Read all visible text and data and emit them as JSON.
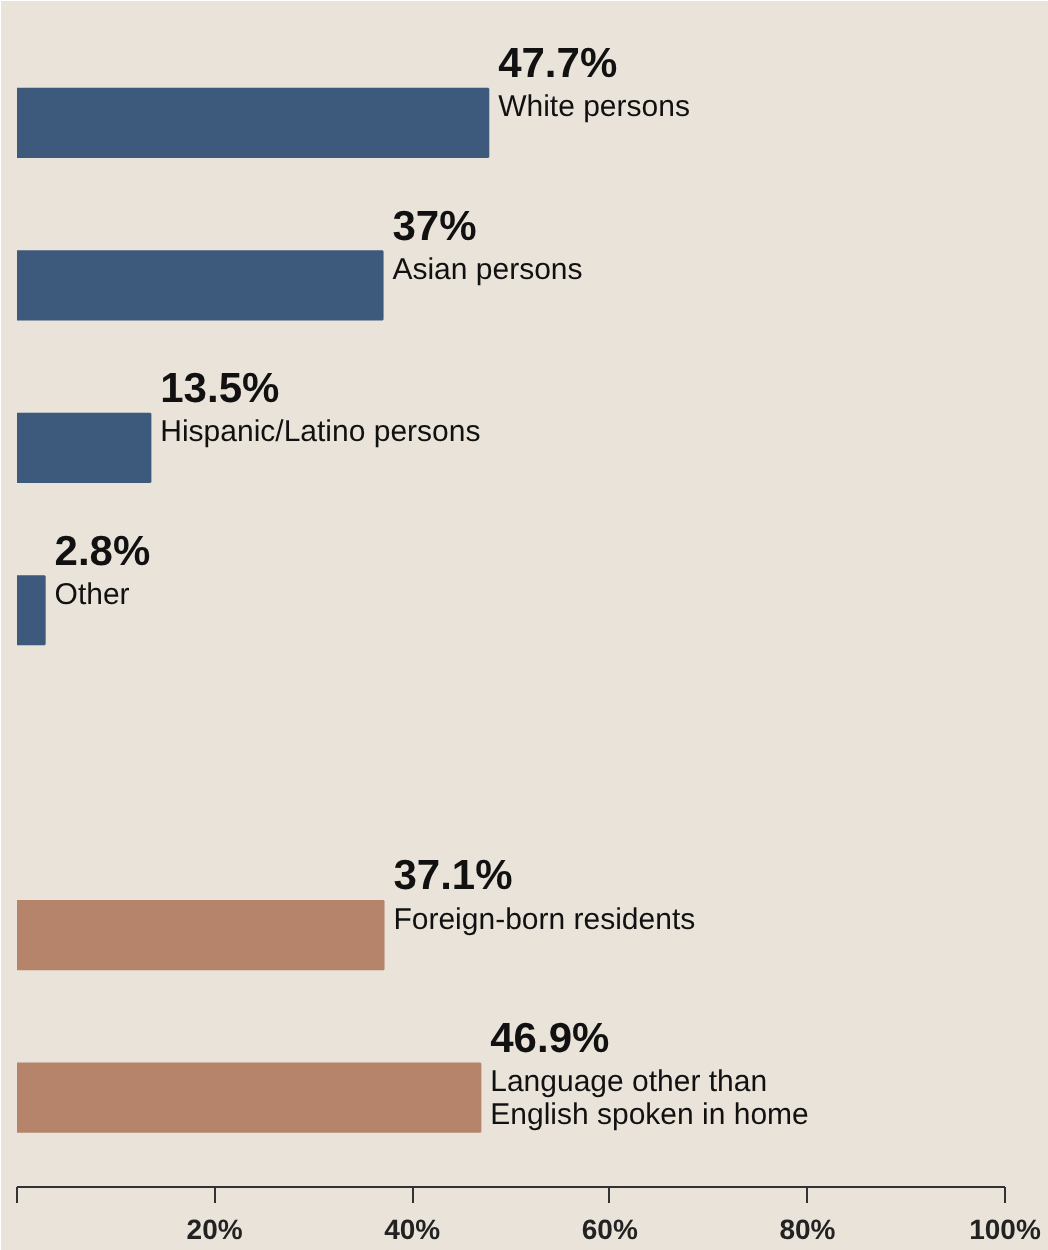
{
  "chart_data": {
    "type": "bar",
    "orientation": "horizontal",
    "categories": [
      "White persons",
      "Asian persons",
      "Hispanic/Latino persons",
      "Other",
      null,
      "Foreign-born residents",
      "Language other than English spoken in home"
    ],
    "values": [
      47.7,
      37,
      13.5,
      2.8,
      null,
      37.1,
      46.9
    ],
    "colors": [
      "#3d5a7c",
      "#3d5a7c",
      "#3d5a7c",
      "#3d5a7c",
      "#3d5a7c",
      "#b5846a",
      "#b5846a"
    ],
    "value_labels": [
      "47.7%",
      "37%",
      "13.5%",
      "2.8%",
      null,
      "37.1%",
      "46.9%"
    ],
    "xlim": [
      0,
      100
    ],
    "xticks": [
      {
        "value": 0,
        "label": null
      },
      {
        "value": 20,
        "label": "20%"
      },
      {
        "value": 40,
        "label": "40%"
      },
      {
        "value": 60,
        "label": "60%"
      },
      {
        "value": 80,
        "label": "80%"
      },
      {
        "value": 100,
        "label": "100%"
      }
    ],
    "grid": false
  }
}
